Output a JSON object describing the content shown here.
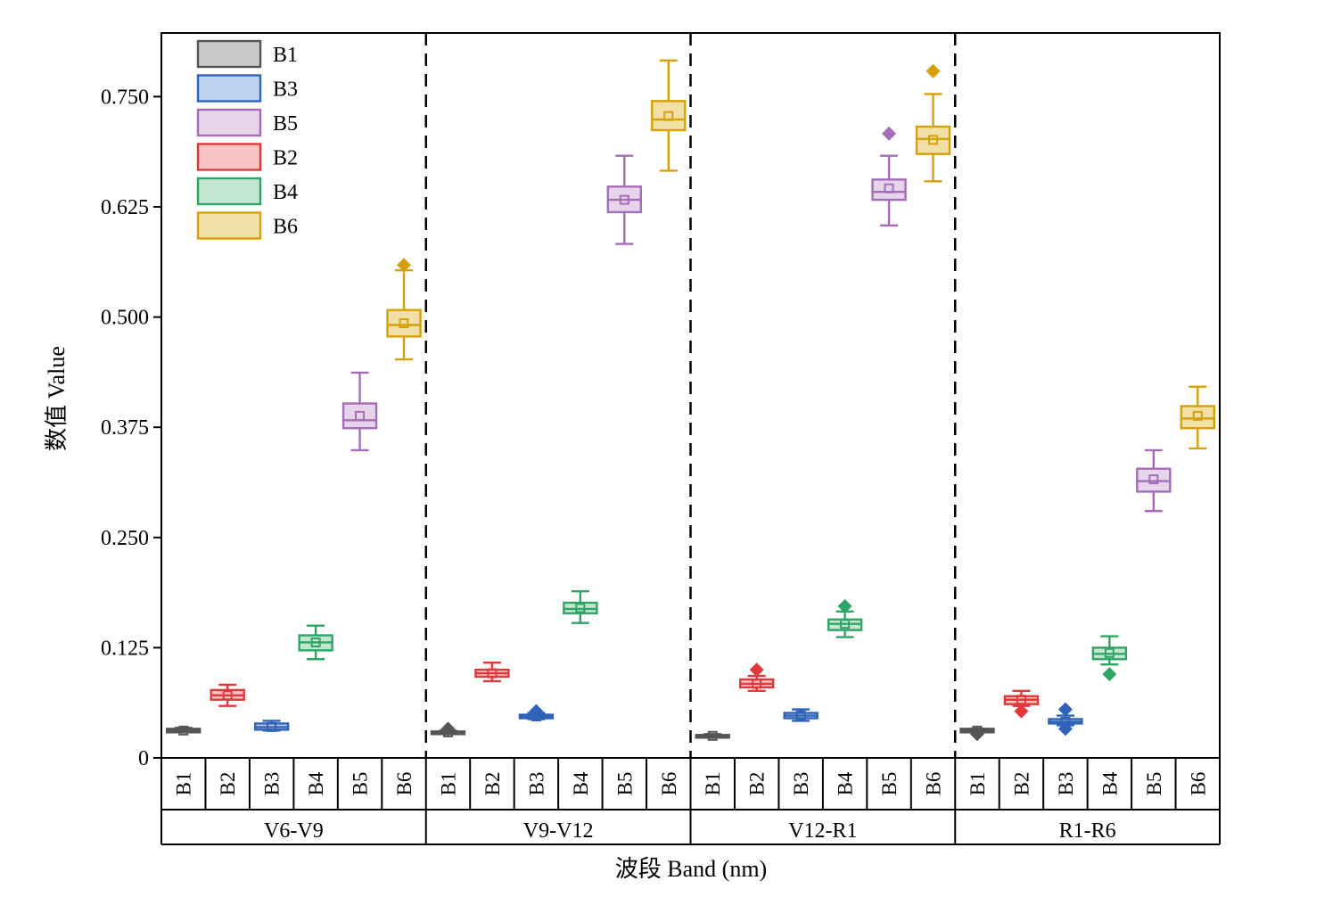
{
  "chart_data": {
    "type": "box",
    "ylabel": "数值 Value",
    "xlabel": "波段 Band (nm)",
    "ylim": [
      0,
      0.825
    ],
    "yticks": [
      "0",
      "0.125",
      "0.250",
      "0.375",
      "0.500",
      "0.625",
      "0.750"
    ],
    "ytick_values": [
      0,
      0.125,
      0.25,
      0.375,
      0.5,
      0.625,
      0.75
    ],
    "legend_position": "top-left",
    "legend": [
      {
        "name": "B1",
        "color": "#555555",
        "fill": "#c8c8c8"
      },
      {
        "name": "B3",
        "color": "#2e63b8",
        "fill": "#bcd2ee"
      },
      {
        "name": "B5",
        "color": "#a56cb8",
        "fill": "#e6d5ea"
      },
      {
        "name": "B2",
        "color": "#e0393b",
        "fill": "#f7c3c3"
      },
      {
        "name": "B4",
        "color": "#2ea565",
        "fill": "#c3e6d1"
      },
      {
        "name": "B6",
        "color": "#d4a10b",
        "fill": "#f1dfa6"
      }
    ],
    "band_colors": {
      "B1": {
        "stroke": "#555555",
        "fill": "#c8c8c8"
      },
      "B2": {
        "stroke": "#e0393b",
        "fill": "#f7c3c3"
      },
      "B3": {
        "stroke": "#2e63b8",
        "fill": "#bcd2ee"
      },
      "B4": {
        "stroke": "#2ea565",
        "fill": "#c3e6d1"
      },
      "B5": {
        "stroke": "#a56cb8",
        "fill": "#e6d5ea"
      },
      "B6": {
        "stroke": "#d4a10b",
        "fill": "#f1dfa6"
      }
    },
    "groups": [
      {
        "name": "V6-V9",
        "boxes": [
          {
            "band": "B1",
            "min": 0.029,
            "q1": 0.029,
            "median": 0.031,
            "mean": 0.031,
            "q3": 0.033,
            "max": 0.034,
            "outliers": []
          },
          {
            "band": "B2",
            "min": 0.059,
            "q1": 0.066,
            "median": 0.071,
            "mean": 0.071,
            "q3": 0.077,
            "max": 0.083,
            "outliers": []
          },
          {
            "band": "B3",
            "min": 0.031,
            "q1": 0.032,
            "median": 0.035,
            "mean": 0.035,
            "q3": 0.039,
            "max": 0.042,
            "outliers": []
          },
          {
            "band": "B4",
            "min": 0.112,
            "q1": 0.122,
            "median": 0.131,
            "mean": 0.131,
            "q3": 0.139,
            "max": 0.15,
            "outliers": []
          },
          {
            "band": "B5",
            "min": 0.349,
            "q1": 0.374,
            "median": 0.383,
            "mean": 0.388,
            "q3": 0.402,
            "max": 0.437,
            "outliers": []
          },
          {
            "band": "B6",
            "min": 0.452,
            "q1": 0.478,
            "median": 0.491,
            "mean": 0.493,
            "q3": 0.508,
            "max": 0.553,
            "outliers": [
              0.559
            ]
          }
        ]
      },
      {
        "name": "V9-V12",
        "boxes": [
          {
            "band": "B1",
            "min": 0.027,
            "q1": 0.028,
            "median": 0.029,
            "mean": 0.029,
            "q3": 0.03,
            "max": 0.031,
            "outliers": [
              0.033
            ]
          },
          {
            "band": "B2",
            "min": 0.087,
            "q1": 0.092,
            "median": 0.096,
            "mean": 0.096,
            "q3": 0.1,
            "max": 0.108,
            "outliers": []
          },
          {
            "band": "B3",
            "min": 0.044,
            "q1": 0.045,
            "median": 0.047,
            "mean": 0.047,
            "q3": 0.049,
            "max": 0.051,
            "outliers": [
              0.053
            ]
          },
          {
            "band": "B4",
            "min": 0.153,
            "q1": 0.164,
            "median": 0.169,
            "mean": 0.17,
            "q3": 0.176,
            "max": 0.189,
            "outliers": []
          },
          {
            "band": "B5",
            "min": 0.583,
            "q1": 0.619,
            "median": 0.633,
            "mean": 0.633,
            "q3": 0.648,
            "max": 0.683,
            "outliers": []
          },
          {
            "band": "B6",
            "min": 0.666,
            "q1": 0.712,
            "median": 0.724,
            "mean": 0.728,
            "q3": 0.745,
            "max": 0.791,
            "outliers": []
          }
        ]
      },
      {
        "name": "V12-R1",
        "boxes": [
          {
            "band": "B1",
            "min": 0.023,
            "q1": 0.024,
            "median": 0.025,
            "mean": 0.025,
            "q3": 0.026,
            "max": 0.027,
            "outliers": []
          },
          {
            "band": "B2",
            "min": 0.076,
            "q1": 0.08,
            "median": 0.084,
            "mean": 0.084,
            "q3": 0.089,
            "max": 0.093,
            "outliers": [
              0.1
            ]
          },
          {
            "band": "B3",
            "min": 0.042,
            "q1": 0.045,
            "median": 0.048,
            "mean": 0.048,
            "q3": 0.051,
            "max": 0.055,
            "outliers": []
          },
          {
            "band": "B4",
            "min": 0.137,
            "q1": 0.145,
            "median": 0.152,
            "mean": 0.152,
            "q3": 0.157,
            "max": 0.166,
            "outliers": [
              0.172
            ]
          },
          {
            "band": "B5",
            "min": 0.604,
            "q1": 0.633,
            "median": 0.642,
            "mean": 0.646,
            "q3": 0.656,
            "max": 0.683,
            "outliers": [
              0.708
            ]
          },
          {
            "band": "B6",
            "min": 0.654,
            "q1": 0.685,
            "median": 0.702,
            "mean": 0.701,
            "q3": 0.716,
            "max": 0.753,
            "outliers": [
              0.779
            ]
          }
        ]
      },
      {
        "name": "R1-R6",
        "boxes": [
          {
            "band": "B1",
            "min": 0.029,
            "q1": 0.029,
            "median": 0.031,
            "mean": 0.031,
            "q3": 0.033,
            "max": 0.033,
            "outliers": [
              0.027
            ]
          },
          {
            "band": "B2",
            "min": 0.059,
            "q1": 0.061,
            "median": 0.066,
            "mean": 0.066,
            "q3": 0.07,
            "max": 0.076,
            "outliers": [
              0.053
            ]
          },
          {
            "band": "B3",
            "min": 0.037,
            "q1": 0.039,
            "median": 0.041,
            "mean": 0.041,
            "q3": 0.044,
            "max": 0.048,
            "outliers": [
              0.033,
              0.055
            ]
          },
          {
            "band": "B4",
            "min": 0.106,
            "q1": 0.112,
            "median": 0.118,
            "mean": 0.119,
            "q3": 0.125,
            "max": 0.138,
            "outliers": [
              0.095
            ]
          },
          {
            "band": "B5",
            "min": 0.28,
            "q1": 0.302,
            "median": 0.314,
            "mean": 0.316,
            "q3": 0.328,
            "max": 0.349,
            "outliers": []
          },
          {
            "band": "B6",
            "min": 0.351,
            "q1": 0.374,
            "median": 0.385,
            "mean": 0.388,
            "q3": 0.399,
            "max": 0.421,
            "outliers": []
          }
        ]
      }
    ]
  }
}
